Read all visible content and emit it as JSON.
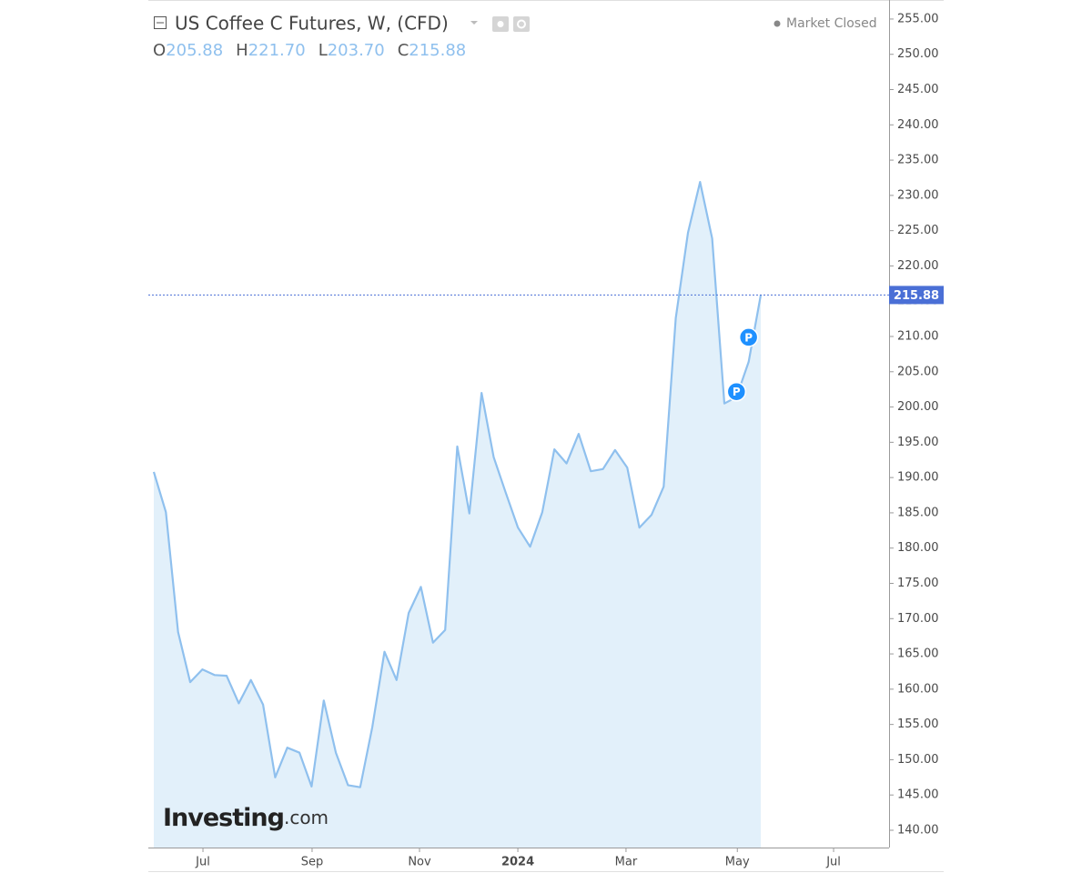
{
  "header": {
    "title": "US Coffee C Futures, W, (CFD)",
    "status": "Market Closed",
    "ohlc": [
      {
        "label": "O",
        "value": "205.88"
      },
      {
        "label": "H",
        "value": "221.70"
      },
      {
        "label": "L",
        "value": "203.70"
      },
      {
        "label": "C",
        "value": "215.88"
      }
    ],
    "logo": {
      "brand": "Investing",
      "suffix": ".com"
    }
  },
  "chart_data": {
    "type": "area",
    "series": [
      {
        "name": "US Coffee C Futures",
        "color": "#8fc0ee",
        "fill": "#e2f0fa",
        "values": [
          190.8,
          185.1,
          168.1,
          161.0,
          162.8,
          162.0,
          161.9,
          158.0,
          161.3,
          157.8,
          147.5,
          151.7,
          151.0,
          146.2,
          158.4,
          151.0,
          146.4,
          146.1,
          154.6,
          165.3,
          161.3,
          170.8,
          174.5,
          166.6,
          168.4,
          194.4,
          184.9,
          202.0,
          192.9,
          187.8,
          182.9,
          180.2,
          185.1,
          194.0,
          192.0,
          196.2,
          190.9,
          191.2,
          193.9,
          191.4,
          182.9,
          184.7,
          188.7,
          212.6,
          224.7,
          231.9,
          223.9,
          200.5,
          201.4,
          206.4,
          215.88
        ]
      }
    ],
    "markers": [
      {
        "label": "P",
        "index": 48
      },
      {
        "label": "P",
        "index": 49
      }
    ],
    "price_line_color": "#4a6fd6",
    "xlim": [
      -0.45,
      60.57
    ],
    "xticks": [
      {
        "value": 4.05,
        "label": "Jul"
      },
      {
        "value": 13.04,
        "label": "Sep"
      },
      {
        "value": 21.89,
        "label": "Nov"
      },
      {
        "value": 29.99,
        "label": "2024"
      },
      {
        "value": 38.9,
        "label": "Mar"
      },
      {
        "value": 48.07,
        "label": "May"
      },
      {
        "value": 56.0,
        "label": "Jul"
      }
    ],
    "ylim": [
      137.55,
      257.7
    ],
    "yticks": [
      {
        "value": 140,
        "label": "140.00"
      },
      {
        "value": 145,
        "label": "145.00"
      },
      {
        "value": 150,
        "label": "150.00"
      },
      {
        "value": 155,
        "label": "155.00"
      },
      {
        "value": 160,
        "label": "160.00"
      },
      {
        "value": 165,
        "label": "165.00"
      },
      {
        "value": 170,
        "label": "170.00"
      },
      {
        "value": 175,
        "label": "175.00"
      },
      {
        "value": 180,
        "label": "180.00"
      },
      {
        "value": 185,
        "label": "185.00"
      },
      {
        "value": 190,
        "label": "190.00"
      },
      {
        "value": 195,
        "label": "195.00"
      },
      {
        "value": 200,
        "label": "200.00"
      },
      {
        "value": 205,
        "label": "205.00"
      },
      {
        "value": 210,
        "label": "210.00"
      },
      {
        "value": 215,
        "label": "215.00"
      },
      {
        "value": 220,
        "label": "220.00"
      },
      {
        "value": 225,
        "label": "225.00"
      },
      {
        "value": 230,
        "label": "230.00"
      },
      {
        "value": 235,
        "label": "235.00"
      },
      {
        "value": 240,
        "label": "240.00"
      },
      {
        "value": 245,
        "label": "245.00"
      },
      {
        "value": 250,
        "label": "250.00"
      },
      {
        "value": 255,
        "label": "255.00"
      }
    ]
  }
}
